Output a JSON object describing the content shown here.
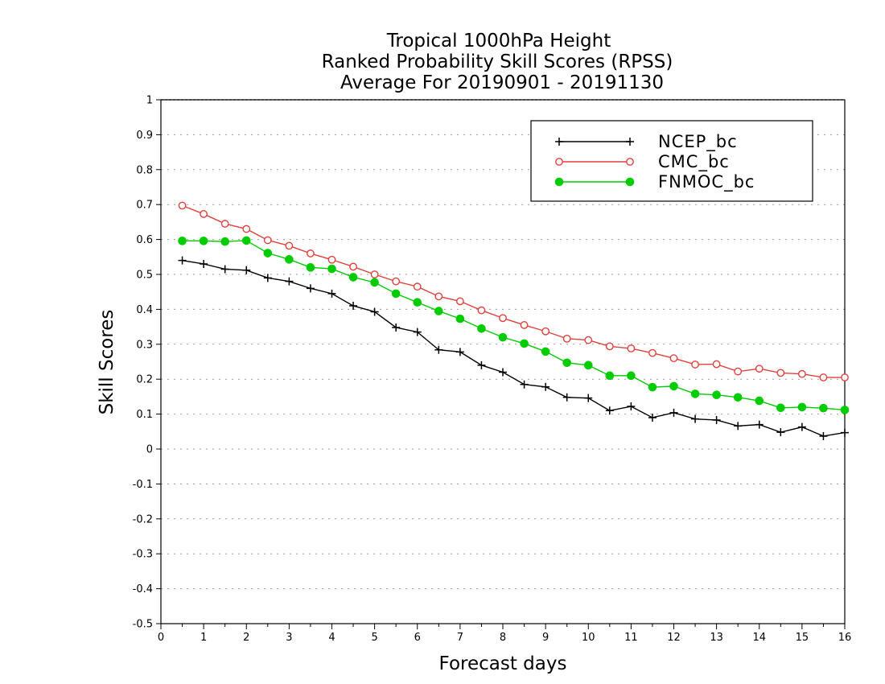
{
  "chart_data": {
    "type": "line",
    "title_lines": [
      "Tropical 1000hPa Height",
      "Ranked Probability Skill Scores (RPSS)",
      "Average For 20190901 - 20191130"
    ],
    "xlabel": "Forecast days",
    "ylabel": "Skill Scores",
    "xlim": [
      0,
      16
    ],
    "ylim": [
      -0.5,
      1
    ],
    "xticks": [
      "0",
      "1",
      "2",
      "3",
      "4",
      "5",
      "6",
      "7",
      "8",
      "9",
      "10",
      "11",
      "12",
      "13",
      "14",
      "15",
      "16"
    ],
    "yticks": [
      "-0.5",
      "-0.4",
      "-0.3",
      "-0.2",
      "-0.1",
      "0",
      "0.1",
      "0.2",
      "0.3",
      "0.4",
      "0.5",
      "0.6",
      "0.7",
      "0.8",
      "0.9",
      "1"
    ],
    "grid": "horizontal dotted",
    "legend_position": "top-right",
    "x": [
      0.5,
      1,
      1.5,
      2,
      2.5,
      3,
      3.5,
      4,
      4.5,
      5,
      5.5,
      6,
      6.5,
      7,
      7.5,
      8,
      8.5,
      9,
      9.5,
      10,
      10.5,
      11,
      11.5,
      12,
      12.5,
      13,
      13.5,
      14,
      14.5,
      15,
      15.5,
      16
    ],
    "series": [
      {
        "name": "NCEP_bc",
        "color": "#000000",
        "marker": "plus",
        "values": [
          0.54,
          0.53,
          0.515,
          0.512,
          0.49,
          0.48,
          0.46,
          0.445,
          0.41,
          0.393,
          0.348,
          0.335,
          0.284,
          0.278,
          0.24,
          0.22,
          0.185,
          0.178,
          0.148,
          0.146,
          0.11,
          0.122,
          0.09,
          0.104,
          0.086,
          0.083,
          0.066,
          0.07,
          0.048,
          0.063,
          0.037,
          0.047
        ]
      },
      {
        "name": "CMC_bc",
        "color": "#e0413c",
        "marker": "open-circle",
        "values": [
          0.697,
          0.673,
          0.645,
          0.63,
          0.598,
          0.582,
          0.56,
          0.542,
          0.522,
          0.5,
          0.48,
          0.465,
          0.437,
          0.423,
          0.397,
          0.375,
          0.355,
          0.337,
          0.316,
          0.312,
          0.294,
          0.288,
          0.275,
          0.26,
          0.242,
          0.243,
          0.222,
          0.23,
          0.218,
          0.215,
          0.205,
          0.205
        ]
      },
      {
        "name": "FNMOC_bc",
        "color": "#00cc00",
        "marker": "filled-circle",
        "values": [
          0.596,
          0.596,
          0.594,
          0.597,
          0.561,
          0.543,
          0.52,
          0.516,
          0.492,
          0.477,
          0.445,
          0.42,
          0.395,
          0.373,
          0.345,
          0.32,
          0.302,
          0.279,
          0.247,
          0.24,
          0.21,
          0.21,
          0.177,
          0.18,
          0.158,
          0.155,
          0.148,
          0.138,
          0.118,
          0.12,
          0.117,
          0.112
        ]
      }
    ]
  }
}
